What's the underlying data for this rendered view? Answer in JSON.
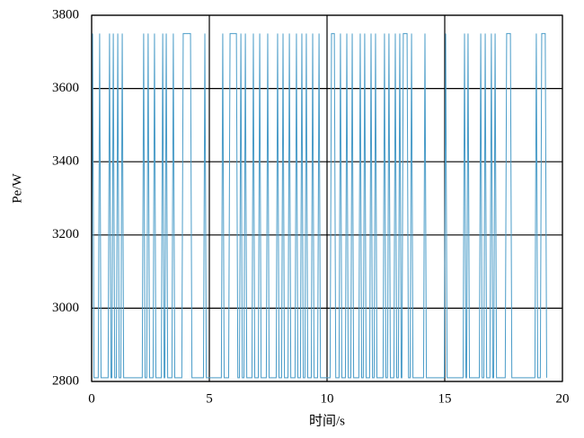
{
  "chart_data": {
    "type": "line",
    "x_label": "时间/s",
    "y_label": "Pe/W",
    "xlim": [
      0,
      20
    ],
    "xticks": [
      0,
      5,
      10,
      15,
      20
    ],
    "ylim": [
      2800,
      3800
    ],
    "yticks": [
      2800,
      3000,
      3200,
      3400,
      3600,
      3800
    ],
    "grid": true,
    "x": [
      0,
      0.04,
      0.1,
      0.28,
      0.34,
      0.4,
      0.7,
      0.76,
      0.82,
      0.86,
      0.92,
      0.98,
      1.05,
      1.11,
      1.17,
      1.24,
      1.3,
      1.36,
      2.15,
      2.21,
      2.27,
      2.34,
      2.4,
      2.46,
      2.61,
      2.67,
      2.73,
      2.96,
      3.02,
      3.08,
      3.11,
      3.17,
      3.23,
      3.41,
      3.47,
      3.53,
      3.83,
      3.89,
      4.2,
      4.26,
      4.75,
      4.81,
      4.87,
      5.51,
      5.57,
      5.63,
      5.82,
      5.88,
      6.15,
      6.21,
      6.28,
      6.34,
      6.4,
      6.47,
      6.53,
      6.59,
      6.81,
      6.87,
      6.93,
      7.08,
      7.14,
      7.2,
      7.42,
      7.48,
      7.54,
      7.84,
      7.9,
      7.96,
      8.07,
      8.13,
      8.19,
      8.34,
      8.4,
      8.46,
      8.64,
      8.7,
      8.76,
      8.87,
      8.93,
      8.99,
      9.06,
      9.12,
      9.18,
      9.33,
      9.39,
      9.45,
      9.6,
      9.66,
      9.72,
      10.13,
      10.19,
      10.31,
      10.37,
      10.51,
      10.57,
      10.63,
      10.78,
      10.84,
      10.9,
      11.01,
      11.07,
      11.13,
      11.35,
      11.41,
      11.47,
      11.54,
      11.6,
      11.66,
      11.81,
      11.87,
      11.93,
      12.0,
      12.06,
      12.12,
      12.38,
      12.44,
      12.5,
      12.57,
      12.63,
      12.69,
      12.84,
      12.9,
      12.96,
      13.03,
      13.09,
      13.15,
      13.18,
      13.24,
      13.4,
      13.46,
      13.53,
      13.59,
      13.65,
      14.1,
      14.16,
      14.22,
      14.98,
      15.04,
      15.1,
      15.78,
      15.84,
      15.9,
      15.93,
      15.99,
      16.05,
      16.47,
      16.53,
      16.59,
      16.66,
      16.72,
      16.78,
      16.92,
      16.98,
      17.04,
      17.08,
      17.14,
      17.2,
      17.57,
      17.63,
      17.79,
      17.85,
      18.83,
      18.89,
      18.95,
      19.06,
      19.12,
      19.27,
      19.33
    ],
    "series": [
      {
        "color": "#4a9cc8",
        "values": [
          2810,
          3750,
          2810,
          2810,
          3750,
          2810,
          2810,
          3750,
          2810,
          2810,
          3750,
          2810,
          2810,
          3750,
          2810,
          2810,
          3750,
          2810,
          2810,
          3750,
          2810,
          2810,
          3750,
          2810,
          2810,
          3750,
          2810,
          2810,
          3750,
          2810,
          2810,
          3750,
          2810,
          2810,
          3750,
          2810,
          2810,
          3750,
          3750,
          2810,
          2810,
          3750,
          2810,
          2810,
          3750,
          2810,
          2810,
          3750,
          3750,
          2810,
          2810,
          3750,
          2810,
          2810,
          3750,
          2810,
          2810,
          3750,
          2810,
          2810,
          3750,
          2810,
          2810,
          3750,
          2810,
          2810,
          3750,
          2810,
          2810,
          3750,
          2810,
          2810,
          3750,
          2810,
          2810,
          3750,
          2810,
          2810,
          3750,
          2810,
          2810,
          3750,
          2810,
          2810,
          3750,
          2810,
          2810,
          3750,
          2810,
          2810,
          3750,
          3750,
          2810,
          2810,
          3750,
          2810,
          2810,
          3750,
          2810,
          2810,
          3750,
          2810,
          2810,
          3750,
          2810,
          2810,
          3750,
          2810,
          2810,
          3750,
          2810,
          2810,
          3750,
          2810,
          2810,
          3750,
          2810,
          2810,
          3750,
          2810,
          2810,
          3750,
          2810,
          2810,
          3750,
          2810,
          2810,
          3750,
          3750,
          2810,
          2810,
          3750,
          2810,
          2810,
          3750,
          2810,
          2810,
          3750,
          2810,
          2810,
          3750,
          2810,
          2810,
          3750,
          2810,
          2810,
          3750,
          2810,
          2810,
          3750,
          2810,
          2810,
          3750,
          2810,
          2810,
          3750,
          2810,
          2810,
          3750,
          3750,
          2810,
          2810,
          3750,
          2810,
          2810,
          3750,
          3750,
          2810
        ]
      }
    ]
  }
}
